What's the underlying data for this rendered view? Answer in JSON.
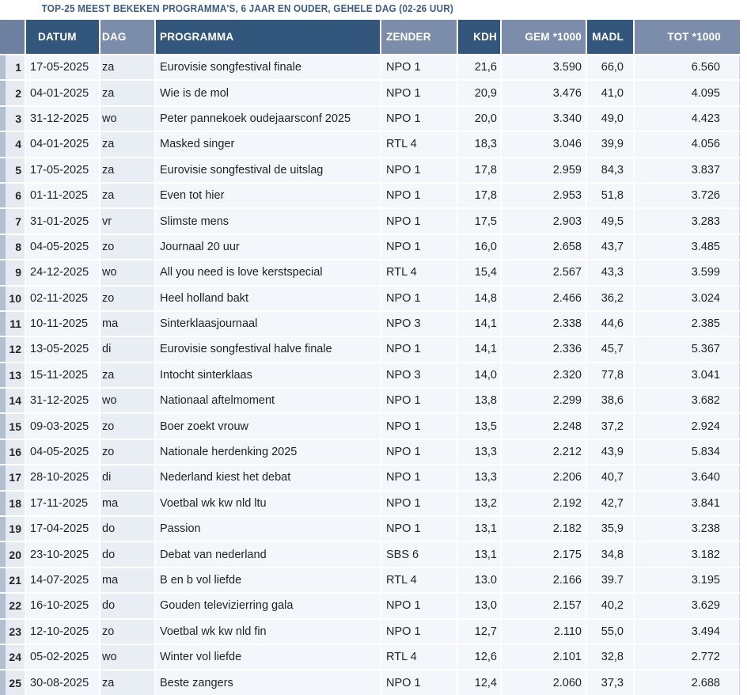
{
  "title": "TOP-25 MEEST BEKEKEN PROGRAMMA'S, 6 JAAR EN OUDER, GEHELE DAG (02-26 UUR)",
  "colors": {
    "header_dark": "#33567c",
    "header_light": "#7b8dab",
    "header_corner": "#6d80a0",
    "row_bg": "#f3f6fa",
    "shaded_col_bg": "#e9edf4",
    "rank_strip": "#b2bed2",
    "title_text": "#3b5c85"
  },
  "chart_data": {
    "type": "table",
    "title": "TOP-25 MEEST BEKEKEN PROGRAMMA'S, 6 JAAR EN OUDER, GEHELE DAG (02-26 UUR)",
    "columns": [
      "",
      "DATUM",
      "DAG",
      "PROGRAMMA",
      "ZENDER",
      "KDH",
      "GEM *1000",
      "MADL",
      "TOT *1000"
    ],
    "rows": [
      {
        "rank": "1",
        "datum": "17-05-2025",
        "dag": "za",
        "programma": "Eurovisie songfestival finale",
        "zender": "NPO 1",
        "kdh": "21,6",
        "gem": "3.590",
        "madl": "66,0",
        "tot": "6.560"
      },
      {
        "rank": "2",
        "datum": "04-01-2025",
        "dag": "za",
        "programma": "Wie is de mol",
        "zender": "NPO 1",
        "kdh": "20,9",
        "gem": "3.476",
        "madl": "41,0",
        "tot": "4.095"
      },
      {
        "rank": "3",
        "datum": "31-12-2025",
        "dag": "wo",
        "programma": "Peter pannekoek oudejaarsconf 2025",
        "zender": "NPO 1",
        "kdh": "20,0",
        "gem": "3.340",
        "madl": "49,0",
        "tot": "4.423"
      },
      {
        "rank": "4",
        "datum": "04-01-2025",
        "dag": "za",
        "programma": "Masked singer",
        "zender": "RTL 4",
        "kdh": "18,3",
        "gem": "3.046",
        "madl": "39,9",
        "tot": "4.056"
      },
      {
        "rank": "5",
        "datum": "17-05-2025",
        "dag": "za",
        "programma": "Eurovisie songfestival de uitslag",
        "zender": "NPO 1",
        "kdh": "17,8",
        "gem": "2.959",
        "madl": "84,3",
        "tot": "3.837"
      },
      {
        "rank": "6",
        "datum": "01-11-2025",
        "dag": "za",
        "programma": "Even tot hier",
        "zender": "NPO 1",
        "kdh": "17,8",
        "gem": "2.953",
        "madl": "51,8",
        "tot": "3.726"
      },
      {
        "rank": "7",
        "datum": "31-01-2025",
        "dag": "vr",
        "programma": "Slimste mens",
        "zender": "NPO 1",
        "kdh": "17,5",
        "gem": "2.903",
        "madl": "49,5",
        "tot": "3.283"
      },
      {
        "rank": "8",
        "datum": "04-05-2025",
        "dag": "zo",
        "programma": "Journaal 20 uur",
        "zender": "NPO 1",
        "kdh": "16,0",
        "gem": "2.658",
        "madl": "43,7",
        "tot": "3.485"
      },
      {
        "rank": "9",
        "datum": "24-12-2025",
        "dag": "wo",
        "programma": "All you need is love kerstspecial",
        "zender": "RTL 4",
        "kdh": "15,4",
        "gem": "2.567",
        "madl": "43,3",
        "tot": "3.599"
      },
      {
        "rank": "10",
        "datum": "02-11-2025",
        "dag": "zo",
        "programma": "Heel holland bakt",
        "zender": "NPO 1",
        "kdh": "14,8",
        "gem": "2.466",
        "madl": "36,2",
        "tot": "3.024"
      },
      {
        "rank": "11",
        "datum": "10-11-2025",
        "dag": "ma",
        "programma": "Sinterklaasjournaal",
        "zender": "NPO 3",
        "kdh": "14,1",
        "gem": "2.338",
        "madl": "44,6",
        "tot": "2.385"
      },
      {
        "rank": "12",
        "datum": "13-05-2025",
        "dag": "di",
        "programma": "Eurovisie songfestival halve finale",
        "zender": "NPO 1",
        "kdh": "14,1",
        "gem": "2.336",
        "madl": "45,7",
        "tot": "5.367"
      },
      {
        "rank": "13",
        "datum": "15-11-2025",
        "dag": "za",
        "programma": "Intocht sinterklaas",
        "zender": "NPO 3",
        "kdh": "14,0",
        "gem": "2.320",
        "madl": "77,8",
        "tot": "3.041"
      },
      {
        "rank": "14",
        "datum": "31-12-2025",
        "dag": "wo",
        "programma": "Nationaal aftelmoment",
        "zender": "NPO 1",
        "kdh": "13,8",
        "gem": "2.299",
        "madl": "38,6",
        "tot": "3.682"
      },
      {
        "rank": "15",
        "datum": "09-03-2025",
        "dag": "zo",
        "programma": "Boer zoekt vrouw",
        "zender": "NPO 1",
        "kdh": "13,5",
        "gem": "2.248",
        "madl": "37,2",
        "tot": "2.924"
      },
      {
        "rank": "16",
        "datum": "04-05-2025",
        "dag": "zo",
        "programma": "Nationale herdenking 2025",
        "zender": "NPO 1",
        "kdh": "13,3",
        "gem": "2.212",
        "madl": "43,9",
        "tot": "5.834"
      },
      {
        "rank": "17",
        "datum": "28-10-2025",
        "dag": "di",
        "programma": "Nederland kiest het debat",
        "zender": "NPO 1",
        "kdh": "13,3",
        "gem": "2.206",
        "madl": "40,7",
        "tot": "3.640"
      },
      {
        "rank": "18",
        "datum": "17-11-2025",
        "dag": "ma",
        "programma": "Voetbal wk kw nld ltu",
        "zender": "NPO 1",
        "kdh": "13,2",
        "gem": "2.192",
        "madl": "42,7",
        "tot": "3.841"
      },
      {
        "rank": "19",
        "datum": "17-04-2025",
        "dag": "do",
        "programma": "Passion",
        "zender": "NPO 1",
        "kdh": "13,1",
        "gem": "2.182",
        "madl": "35,9",
        "tot": "3.238"
      },
      {
        "rank": "20",
        "datum": "23-10-2025",
        "dag": "do",
        "programma": "Debat van nederland",
        "zender": "SBS 6",
        "kdh": "13,1",
        "gem": "2.175",
        "madl": "34,8",
        "tot": "3.182"
      },
      {
        "rank": "21",
        "datum": "14-07-2025",
        "dag": "ma",
        "programma": "B en b vol liefde",
        "zender": "RTL 4",
        "kdh": "13.0",
        "gem": "2.166",
        "madl": "39.7",
        "tot": "3.195"
      },
      {
        "rank": "22",
        "datum": "16-10-2025",
        "dag": "do",
        "programma": "Gouden televizierring gala",
        "zender": "NPO 1",
        "kdh": "13,0",
        "gem": "2.157",
        "madl": "40,2",
        "tot": "3.629"
      },
      {
        "rank": "23",
        "datum": "12-10-2025",
        "dag": "zo",
        "programma": "Voetbal wk kw nld fin",
        "zender": "NPO 1",
        "kdh": "12,7",
        "gem": "2.110",
        "madl": "55,0",
        "tot": "3.494"
      },
      {
        "rank": "24",
        "datum": "05-02-2025",
        "dag": "wo",
        "programma": "Winter vol liefde",
        "zender": "RTL 4",
        "kdh": "12,6",
        "gem": "2.101",
        "madl": "32,8",
        "tot": "2.772"
      },
      {
        "rank": "25",
        "datum": "30-08-2025",
        "dag": "za",
        "programma": "Beste zangers",
        "zender": "NPO 1",
        "kdh": "12,4",
        "gem": "2.060",
        "madl": "37,3",
        "tot": "2.688"
      }
    ]
  }
}
